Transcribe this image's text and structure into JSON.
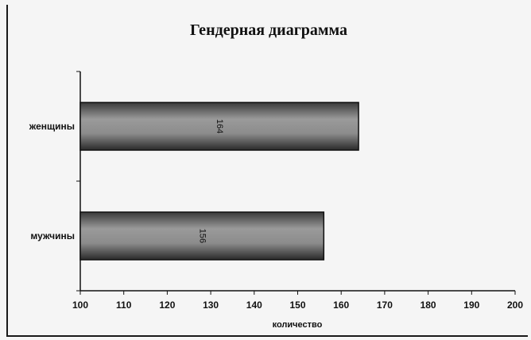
{
  "chart_data": {
    "type": "bar",
    "orientation": "horizontal",
    "title": "Гендерная диаграмма",
    "categories": [
      "женщины",
      "мужчины"
    ],
    "values": [
      164,
      156
    ],
    "data_labels": [
      "164",
      "156"
    ],
    "xlabel": "количество",
    "ylabel": "",
    "xlim": [
      100,
      200
    ],
    "x_ticks": [
      "100",
      "110",
      "120",
      "130",
      "140",
      "150",
      "160",
      "170",
      "180",
      "190",
      "200"
    ],
    "grid": false,
    "legend": "none",
    "bar_color": "#8a8a8a",
    "bar_stroke": "#111111"
  }
}
